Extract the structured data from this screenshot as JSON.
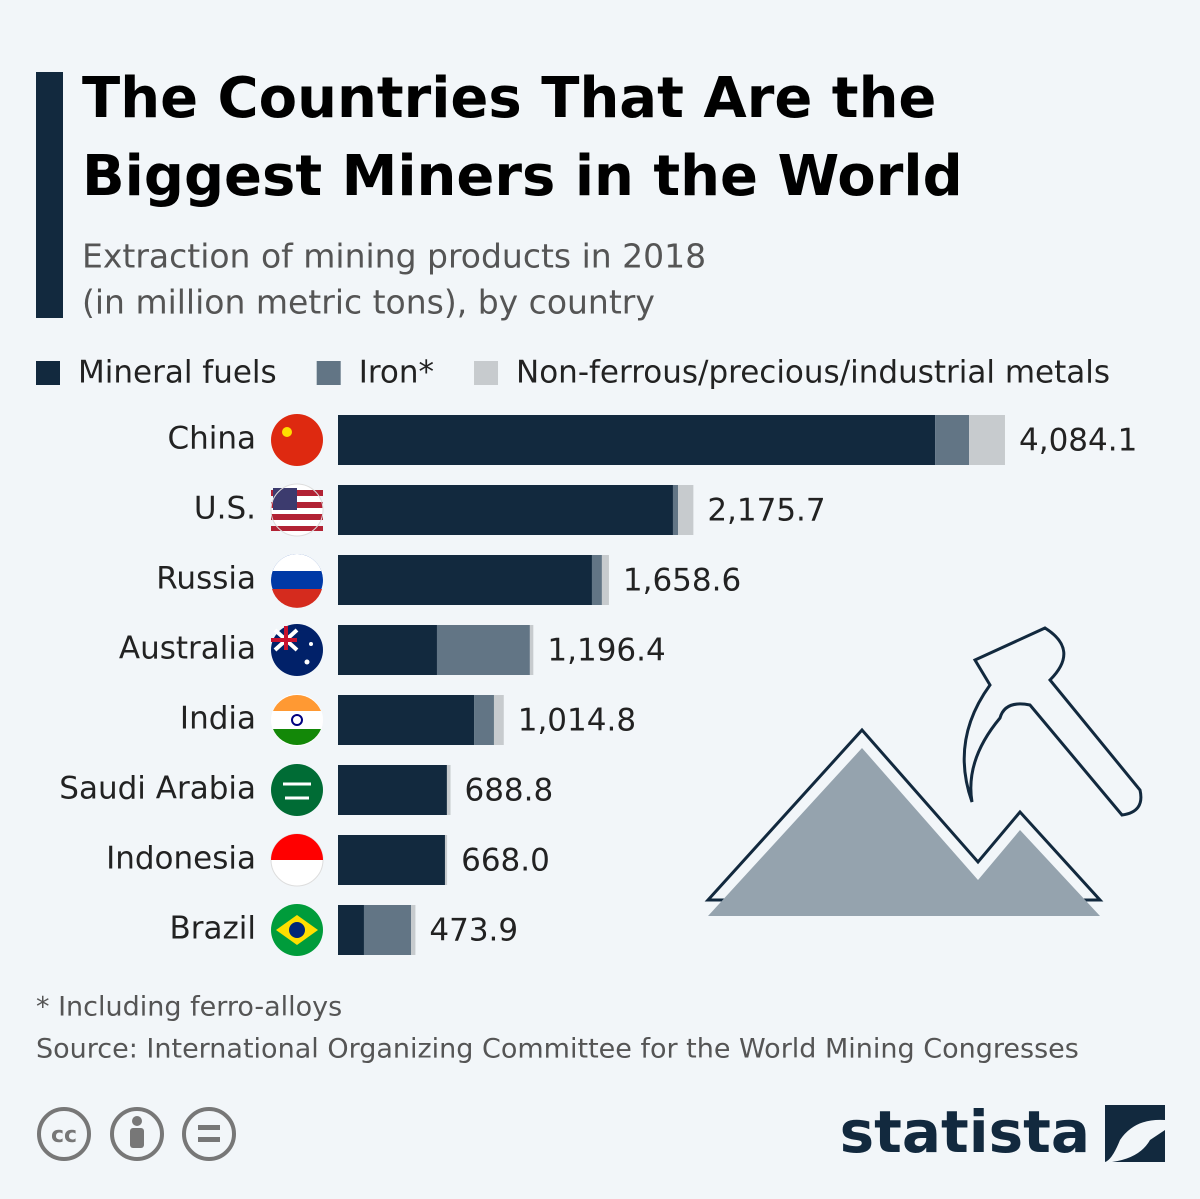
{
  "chart_data": {
    "type": "stacked-bar-horizontal",
    "title": [
      "The Countries That Are the",
      "Biggest Miners in the World"
    ],
    "subtitle": [
      "Extraction of mining products in 2018",
      "(in million metric tons), by country"
    ],
    "categories": [
      "China",
      "U.S.",
      "Russia",
      "Australia",
      "India",
      "Saudi Arabia",
      "Indonesia",
      "Brazil"
    ],
    "series": [
      {
        "name": "Mineral fuels",
        "color": "#12293e",
        "values": [
          3656,
          2051,
          1555,
          606,
          833,
          667,
          655,
          159
        ]
      },
      {
        "name": "Iron*",
        "color": "#627585",
        "values": [
          208,
          31,
          61,
          569,
          122,
          0,
          0,
          288
        ]
      },
      {
        "name": "Non-ferrous/precious/industrial metals",
        "color": "#c7cbce",
        "values": [
          220,
          94,
          43,
          21,
          60,
          22,
          13,
          27
        ]
      }
    ],
    "totals": [
      4084.1,
      2175.7,
      1658.6,
      1196.4,
      1014.8,
      688.8,
      668.0,
      473.9
    ],
    "total_labels": [
      "4,084.1",
      "2,175.7",
      "1,658.6",
      "1,196.4",
      "1,014.8",
      "688.8",
      "668.0",
      "473.9"
    ],
    "legend": "top",
    "note": "* Including ferro-alloys",
    "source": "Source: International Organizing Committee for the World Mining Congresses"
  },
  "license": "cc",
  "brand": "statista"
}
